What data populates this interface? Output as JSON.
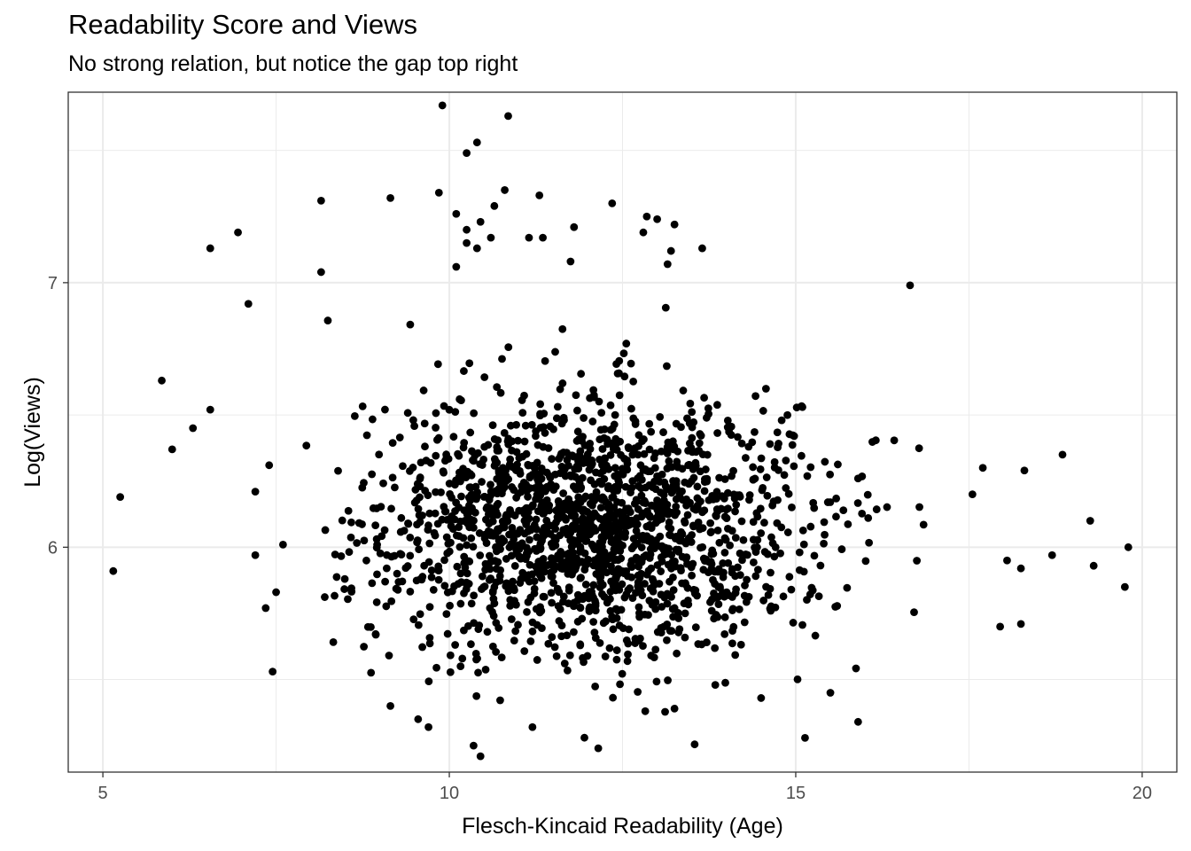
{
  "chart_data": {
    "type": "scatter",
    "title": "Readability Score and Views",
    "subtitle": "No strong relation, but notice the gap top right",
    "xlabel": "Flesch-Kincaid Readability (Age)",
    "ylabel": "Log(Views)",
    "xlim": [
      4.5,
      20.5
    ],
    "ylim": [
      5.15,
      7.72
    ],
    "x_ticks": [
      5,
      10,
      15,
      20
    ],
    "x_tick_labels": [
      "5",
      "10",
      "15",
      "20"
    ],
    "y_ticks": [
      6,
      7
    ],
    "y_tick_labels": [
      "6",
      "7"
    ],
    "grid": true,
    "theme": "bw",
    "point_color": "#000000",
    "outliers": [
      {
        "x": 9.9,
        "y": 7.67
      },
      {
        "x": 10.85,
        "y": 7.63
      },
      {
        "x": 10.4,
        "y": 7.53
      },
      {
        "x": 10.25,
        "y": 7.49
      },
      {
        "x": 10.8,
        "y": 7.35
      },
      {
        "x": 9.85,
        "y": 7.34
      },
      {
        "x": 11.3,
        "y": 7.33
      },
      {
        "x": 9.15,
        "y": 7.32
      },
      {
        "x": 8.15,
        "y": 7.31
      },
      {
        "x": 10.65,
        "y": 7.29
      },
      {
        "x": 12.35,
        "y": 7.3
      },
      {
        "x": 10.1,
        "y": 7.26
      },
      {
        "x": 12.85,
        "y": 7.25
      },
      {
        "x": 13.0,
        "y": 7.24
      },
      {
        "x": 10.45,
        "y": 7.23
      },
      {
        "x": 10.25,
        "y": 7.2
      },
      {
        "x": 11.8,
        "y": 7.21
      },
      {
        "x": 13.25,
        "y": 7.22
      },
      {
        "x": 6.95,
        "y": 7.19
      },
      {
        "x": 10.6,
        "y": 7.17
      },
      {
        "x": 11.15,
        "y": 7.17
      },
      {
        "x": 11.35,
        "y": 7.17
      },
      {
        "x": 12.8,
        "y": 7.19
      },
      {
        "x": 6.55,
        "y": 7.13
      },
      {
        "x": 10.25,
        "y": 7.15
      },
      {
        "x": 13.65,
        "y": 7.13
      },
      {
        "x": 13.2,
        "y": 7.12
      },
      {
        "x": 10.4,
        "y": 7.13
      },
      {
        "x": 11.75,
        "y": 7.08
      },
      {
        "x": 13.15,
        "y": 7.07
      },
      {
        "x": 8.15,
        "y": 7.04
      },
      {
        "x": 10.1,
        "y": 7.06
      },
      {
        "x": 16.65,
        "y": 6.99
      },
      {
        "x": 7.1,
        "y": 6.92
      },
      {
        "x": 5.85,
        "y": 6.63
      },
      {
        "x": 5.25,
        "y": 6.19
      },
      {
        "x": 5.15,
        "y": 5.91
      },
      {
        "x": 6.0,
        "y": 6.37
      },
      {
        "x": 6.3,
        "y": 6.45
      },
      {
        "x": 6.55,
        "y": 6.52
      },
      {
        "x": 7.2,
        "y": 6.21
      },
      {
        "x": 7.4,
        "y": 6.31
      },
      {
        "x": 7.2,
        "y": 5.97
      },
      {
        "x": 7.6,
        "y": 6.01
      },
      {
        "x": 7.5,
        "y": 5.83
      },
      {
        "x": 7.35,
        "y": 5.77
      },
      {
        "x": 7.45,
        "y": 5.53
      },
      {
        "x": 18.85,
        "y": 6.35
      },
      {
        "x": 18.3,
        "y": 6.29
      },
      {
        "x": 19.25,
        "y": 6.1
      },
      {
        "x": 19.8,
        "y": 6.0
      },
      {
        "x": 19.3,
        "y": 5.93
      },
      {
        "x": 19.75,
        "y": 5.85
      },
      {
        "x": 18.7,
        "y": 5.97
      },
      {
        "x": 18.25,
        "y": 5.71
      },
      {
        "x": 17.95,
        "y": 5.7
      },
      {
        "x": 18.05,
        "y": 5.95
      },
      {
        "x": 18.25,
        "y": 5.92
      },
      {
        "x": 17.55,
        "y": 6.2
      },
      {
        "x": 17.7,
        "y": 6.3
      },
      {
        "x": 15.9,
        "y": 5.34
      },
      {
        "x": 10.45,
        "y": 5.21
      },
      {
        "x": 10.35,
        "y": 5.25
      },
      {
        "x": 12.15,
        "y": 5.24
      },
      {
        "x": 11.95,
        "y": 5.28
      },
      {
        "x": 9.7,
        "y": 5.32
      },
      {
        "x": 11.2,
        "y": 5.32
      },
      {
        "x": 9.55,
        "y": 5.35
      },
      {
        "x": 13.25,
        "y": 5.39
      },
      {
        "x": 9.15,
        "y": 5.4
      },
      {
        "x": 14.5,
        "y": 5.43
      },
      {
        "x": 15.5,
        "y": 5.45
      }
    ],
    "core_cloud": {
      "center": [
        12.0,
        6.08
      ],
      "count": 1800,
      "x_sd": 1.6,
      "y_sd": 0.24,
      "x_range": [
        7.9,
        17.1
      ],
      "y_range": [
        5.22,
        6.98
      ]
    }
  }
}
